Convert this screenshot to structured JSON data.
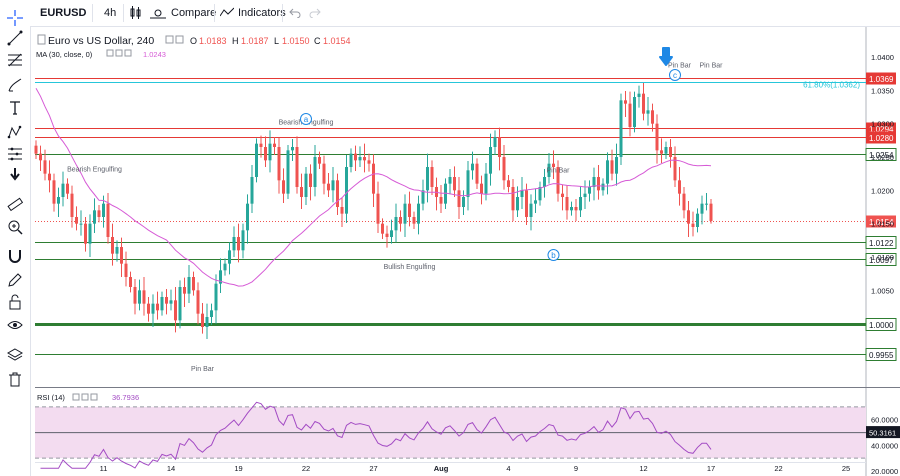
{
  "toolbar": {
    "symbol": "EURUSD",
    "interval": "4h",
    "compare_label": "Compare",
    "indicators_label": "Indicators"
  },
  "legend": {
    "title": "Euro vs US Dollar, 240",
    "open_label": "O",
    "open": "1.0183",
    "high_label": "H",
    "high": "1.0187",
    "low_label": "L",
    "low": "1.0150",
    "close_label": "C",
    "close": "1.0154",
    "ma_label": "MA (30, close, 0)",
    "ma_value": "1.0243",
    "rsi_label": "RSI (14)",
    "rsi_value": "36.7936"
  },
  "colors": {
    "up": "#26a69a",
    "down": "#ef5350",
    "ma": "#d65bd6",
    "rsi_line": "#a34bc4",
    "rsi_band": "#f3dcf0",
    "resistance": "#e53935",
    "support": "#2e7d32",
    "fib": "#26c6da",
    "marker": "#1e88e5"
  },
  "chart_data": [
    {
      "type": "candlestick",
      "title": "Euro vs US Dollar, 240",
      "ylim": [
        0.9905,
        1.0445
      ],
      "y_ticks": [
        "1.0400",
        "1.0350",
        "1.0300",
        "1.0250",
        "1.0200",
        "1.0150",
        "1.0100",
        "1.0050",
        "1.0000",
        "0.9955"
      ],
      "x_ticks": [
        "11",
        "14",
        "19",
        "22",
        "27",
        "Aug",
        "4",
        "9",
        "12",
        "17",
        "22",
        "25"
      ],
      "closes": [
        1.0255,
        1.0245,
        1.0225,
        1.0215,
        1.018,
        1.019,
        1.021,
        1.0195,
        1.016,
        1.015,
        1.015,
        1.012,
        1.015,
        1.017,
        1.016,
        1.018,
        1.013,
        1.0105,
        1.0115,
        1.009,
        1.007,
        1.0055,
        1.003,
        1.005,
        1.003,
        1.0015,
        1.003,
        1.002,
        1.004,
        1.003,
        1.0035,
        1.0005,
        1.0055,
        1.0045,
        1.007,
        1.005,
        1.0015,
        0.9995,
        1.001,
        1.002,
        1.006,
        1.008,
        1.009,
        1.011,
        1.013,
        1.011,
        1.014,
        1.018,
        1.022,
        1.027,
        1.0265,
        1.0245,
        1.027,
        1.0265,
        1.0215,
        1.0195,
        1.026,
        1.0265,
        1.0205,
        1.019,
        1.0225,
        1.0205,
        1.025,
        1.024,
        1.021,
        1.02,
        1.0215,
        1.0175,
        1.0165,
        1.0235,
        1.0255,
        1.0245,
        1.025,
        1.0245,
        1.024,
        1.0195,
        1.015,
        1.0135,
        1.013,
        1.014,
        1.016,
        1.015,
        1.018,
        1.016,
        1.015,
        1.018,
        1.02,
        1.0235,
        1.0205,
        1.019,
        1.018,
        1.021,
        1.022,
        1.02,
        1.0175,
        1.019,
        1.023,
        1.024,
        1.021,
        1.0195,
        1.0225,
        1.0265,
        1.028,
        1.025,
        1.0215,
        1.0205,
        1.017,
        1.019,
        1.02,
        1.016,
        1.018,
        1.0185,
        1.0205,
        1.022,
        1.024,
        1.0235,
        1.0195,
        1.019,
        1.017,
        1.0175,
        1.017,
        1.019,
        1.0195,
        1.0205,
        1.022,
        1.02,
        1.021,
        1.0245,
        1.0225,
        1.025,
        1.0335,
        1.033,
        1.0295,
        1.034,
        1.0345,
        1.0315,
        1.032,
        1.03,
        1.026,
        1.0255,
        1.0265,
        1.025,
        1.0215,
        1.0195,
        1.017,
        1.015,
        1.0145,
        1.0165,
        1.018,
        1.018,
        1.0154
      ],
      "ma": {
        "name": "MA (30, close, 0)",
        "last": 1.0243
      },
      "levels": [
        {
          "value": 1.0369,
          "label": "1.0369",
          "kind": "resistance"
        },
        {
          "value": 1.0294,
          "label": "1.0294",
          "kind": "resistance"
        },
        {
          "value": 1.028,
          "label": "1.0280",
          "kind": "resistance"
        },
        {
          "value": 1.0254,
          "label": "1.0254",
          "kind": "support"
        },
        {
          "value": 1.0122,
          "label": "1.0122",
          "kind": "support"
        },
        {
          "value": 1.0097,
          "label": "1.0097",
          "kind": "support"
        },
        {
          "value": 1.0,
          "label": "1.0000",
          "kind": "major"
        },
        {
          "value": 0.9955,
          "label": "0.9955",
          "kind": "support"
        },
        {
          "value": 1.0362,
          "label": "61.80%(1.0362)",
          "kind": "fib"
        },
        {
          "value": 1.0154,
          "label": "1.0154",
          "kind": "last"
        }
      ],
      "annotations": [
        {
          "text": "Bearish Engulfing",
          "bar": 13
        },
        {
          "text": "Bearish Engulfing",
          "bar": 60
        },
        {
          "text": "Pin Bar",
          "bar": 37
        },
        {
          "text": "Bullish Engulfing",
          "bar": 83
        },
        {
          "text": "Pin Bar",
          "bar": 116
        },
        {
          "text": "Pin Bar",
          "bar": 143
        },
        {
          "text": "Pin Bar",
          "bar": 150
        }
      ],
      "wave_labels": [
        {
          "text": "a",
          "bar": 60,
          "value": 1.0307
        },
        {
          "text": "b",
          "bar": 115,
          "value": 1.0103
        },
        {
          "text": "c",
          "bar": 142,
          "value": 1.0373
        }
      ]
    },
    {
      "type": "line",
      "title": "RSI (14)",
      "ylim": [
        16,
        84
      ],
      "y_ticks": [
        "60.0000",
        "40.0000",
        "20.0000"
      ],
      "band": [
        30,
        70
      ],
      "mid_label": "50.3161",
      "last": 36.7936
    }
  ]
}
